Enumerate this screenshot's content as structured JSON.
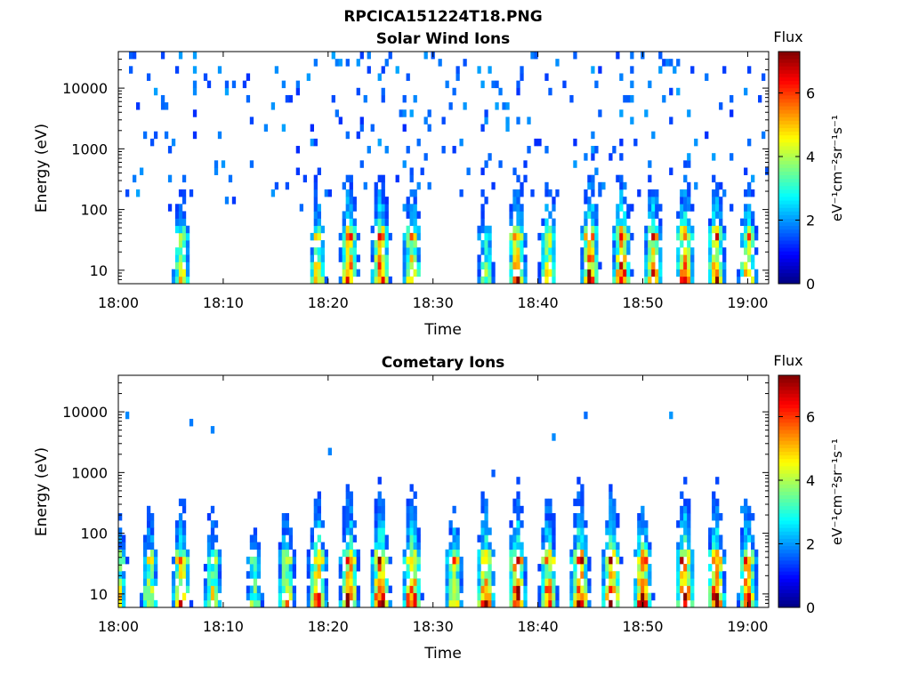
{
  "figure": {
    "title": "RPCICA151224T18.PNG"
  },
  "chart_data": [
    {
      "type": "heatmap",
      "title": "Solar Wind Ions",
      "xlabel": "Time",
      "ylabel": "Energy (eV)",
      "x_range": [
        "18:00",
        "19:02"
      ],
      "x_ticks": [
        "18:00",
        "18:10",
        "18:20",
        "18:30",
        "18:40",
        "18:50",
        "19:00"
      ],
      "y_scale": "log",
      "y_range": [
        6,
        40000
      ],
      "y_ticks": [
        10,
        100,
        1000,
        10000
      ],
      "colorbar": {
        "label": "Flux",
        "unit": "eV⁻¹cm⁻²sr⁻¹s⁻¹",
        "range": [
          0,
          7.3
        ],
        "ticks": [
          0,
          2,
          4,
          6
        ],
        "colormap": "jet"
      },
      "grid": false,
      "bursts": [
        {
          "time": "18:06",
          "peak": 4.3
        },
        {
          "time": "18:19",
          "peak": 4.6
        },
        {
          "time": "18:22",
          "peak": 5.6
        },
        {
          "time": "18:25",
          "peak": 5.8
        },
        {
          "time": "18:28",
          "peak": 5.3
        },
        {
          "time": "18:35",
          "peak": 3.4
        },
        {
          "time": "18:38",
          "peak": 5.6
        },
        {
          "time": "18:41",
          "peak": 4.8
        },
        {
          "time": "18:45",
          "peak": 6.0
        },
        {
          "time": "18:48",
          "peak": 6.1
        },
        {
          "time": "18:51",
          "peak": 5.6
        },
        {
          "time": "18:54",
          "peak": 5.8
        },
        {
          "time": "18:57",
          "peak": 5.6
        },
        {
          "time": "19:00",
          "peak": 5.1
        }
      ]
    },
    {
      "type": "heatmap",
      "title": "Cometary Ions",
      "xlabel": "Time",
      "ylabel": "Energy (eV)",
      "x_range": [
        "18:00",
        "19:02"
      ],
      "x_ticks": [
        "18:00",
        "18:10",
        "18:20",
        "18:30",
        "18:40",
        "18:50",
        "19:00"
      ],
      "y_scale": "log",
      "y_range": [
        6,
        40000
      ],
      "y_ticks": [
        10,
        100,
        1000,
        10000
      ],
      "colorbar": {
        "label": "Flux",
        "unit": "eV⁻¹cm⁻²sr⁻¹s⁻¹",
        "range": [
          0,
          7.3
        ],
        "ticks": [
          0,
          2,
          4,
          6
        ],
        "colormap": "jet"
      },
      "grid": false,
      "bursts": [
        {
          "time": "18:00",
          "peak": 4.4
        },
        {
          "time": "18:03",
          "peak": 4.6
        },
        {
          "time": "18:06",
          "peak": 5.6
        },
        {
          "time": "18:09",
          "peak": 4.4
        },
        {
          "time": "18:13",
          "peak": 3.6
        },
        {
          "time": "18:16",
          "peak": 4.8
        },
        {
          "time": "18:19",
          "peak": 6.0
        },
        {
          "time": "18:22",
          "peak": 6.4
        },
        {
          "time": "18:25",
          "peak": 6.6
        },
        {
          "time": "18:28",
          "peak": 6.3
        },
        {
          "time": "18:32",
          "peak": 5.0
        },
        {
          "time": "18:35",
          "peak": 5.8
        },
        {
          "time": "18:38",
          "peak": 6.5
        },
        {
          "time": "18:41",
          "peak": 5.8
        },
        {
          "time": "18:44",
          "peak": 6.6
        },
        {
          "time": "18:47",
          "peak": 6.6
        },
        {
          "time": "18:50",
          "peak": 6.2
        },
        {
          "time": "18:54",
          "peak": 6.6
        },
        {
          "time": "18:57",
          "peak": 6.2
        },
        {
          "time": "19:00",
          "peak": 6.0
        }
      ]
    }
  ]
}
